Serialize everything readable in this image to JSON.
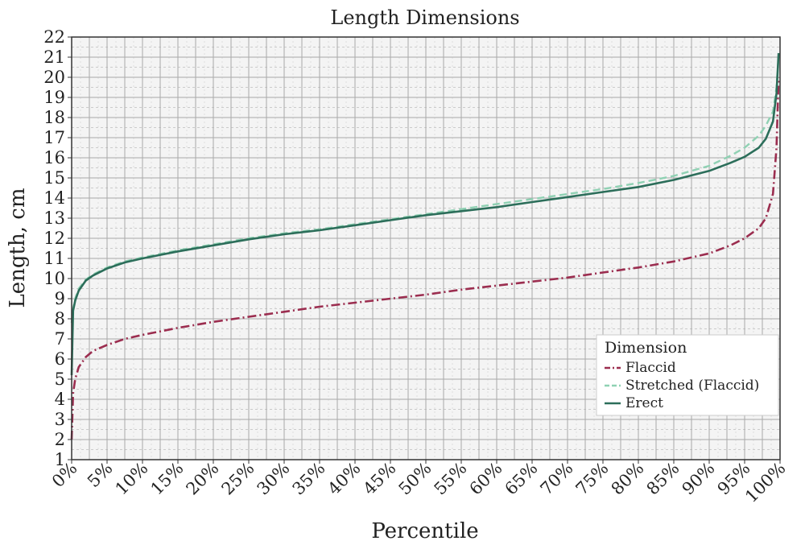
{
  "chart_data": {
    "type": "line",
    "title": "Length Dimensions",
    "xlabel": "Percentile",
    "ylabel": "Length, cm",
    "xlim": [
      0,
      100
    ],
    "ylim": [
      1,
      22
    ],
    "x_ticks": [
      "0%",
      "5%",
      "10%",
      "15%",
      "20%",
      "25%",
      "30%",
      "35%",
      "40%",
      "45%",
      "50%",
      "55%",
      "60%",
      "65%",
      "70%",
      "75%",
      "80%",
      "85%",
      "90%",
      "95%",
      "100%"
    ],
    "y_ticks": [
      "1",
      "2",
      "3",
      "4",
      "5",
      "6",
      "7",
      "8",
      "9",
      "10",
      "11",
      "12",
      "13",
      "14",
      "15",
      "16",
      "17",
      "18",
      "19",
      "20",
      "21",
      "22"
    ],
    "grid": true,
    "legend": {
      "title": "Dimension",
      "placement": "bottom-right"
    },
    "x": [
      0.0,
      0.2,
      0.5,
      1,
      2,
      3,
      5,
      7.5,
      10,
      15,
      20,
      25,
      30,
      35,
      40,
      45,
      50,
      55,
      60,
      65,
      70,
      75,
      80,
      85,
      90,
      93,
      95,
      97,
      98,
      99,
      99.5,
      99.8
    ],
    "series": [
      {
        "name": "Flaccid",
        "color": "#9b2d4f",
        "dash": "dashdot",
        "values": [
          2.0,
          4.3,
          5.0,
          5.6,
          6.1,
          6.4,
          6.7,
          7.0,
          7.2,
          7.55,
          7.85,
          8.1,
          8.35,
          8.6,
          8.8,
          9.0,
          9.2,
          9.45,
          9.65,
          9.85,
          10.05,
          10.3,
          10.55,
          10.85,
          11.25,
          11.65,
          12.0,
          12.5,
          13.0,
          14.2,
          16.5,
          20.0
        ]
      },
      {
        "name": "Stretched (Flaccid)",
        "color": "#8fd1b3",
        "dash": "dashed",
        "values": [
          7.8,
          8.5,
          9.0,
          9.5,
          9.95,
          10.2,
          10.55,
          10.85,
          11.05,
          11.4,
          11.7,
          12.0,
          12.25,
          12.45,
          12.7,
          12.95,
          13.2,
          13.45,
          13.7,
          13.95,
          14.2,
          14.45,
          14.75,
          15.1,
          15.6,
          16.1,
          16.5,
          17.1,
          17.6,
          18.3,
          19.5,
          21.0
        ]
      },
      {
        "name": "Erect",
        "color": "#2c6e5a",
        "dash": "solid",
        "values": [
          5.2,
          8.4,
          8.9,
          9.4,
          9.9,
          10.15,
          10.5,
          10.8,
          11.0,
          11.35,
          11.65,
          11.95,
          12.2,
          12.4,
          12.65,
          12.9,
          13.15,
          13.35,
          13.55,
          13.8,
          14.05,
          14.3,
          14.55,
          14.9,
          15.35,
          15.75,
          16.05,
          16.5,
          16.95,
          17.8,
          19.2,
          21.2
        ]
      }
    ]
  }
}
